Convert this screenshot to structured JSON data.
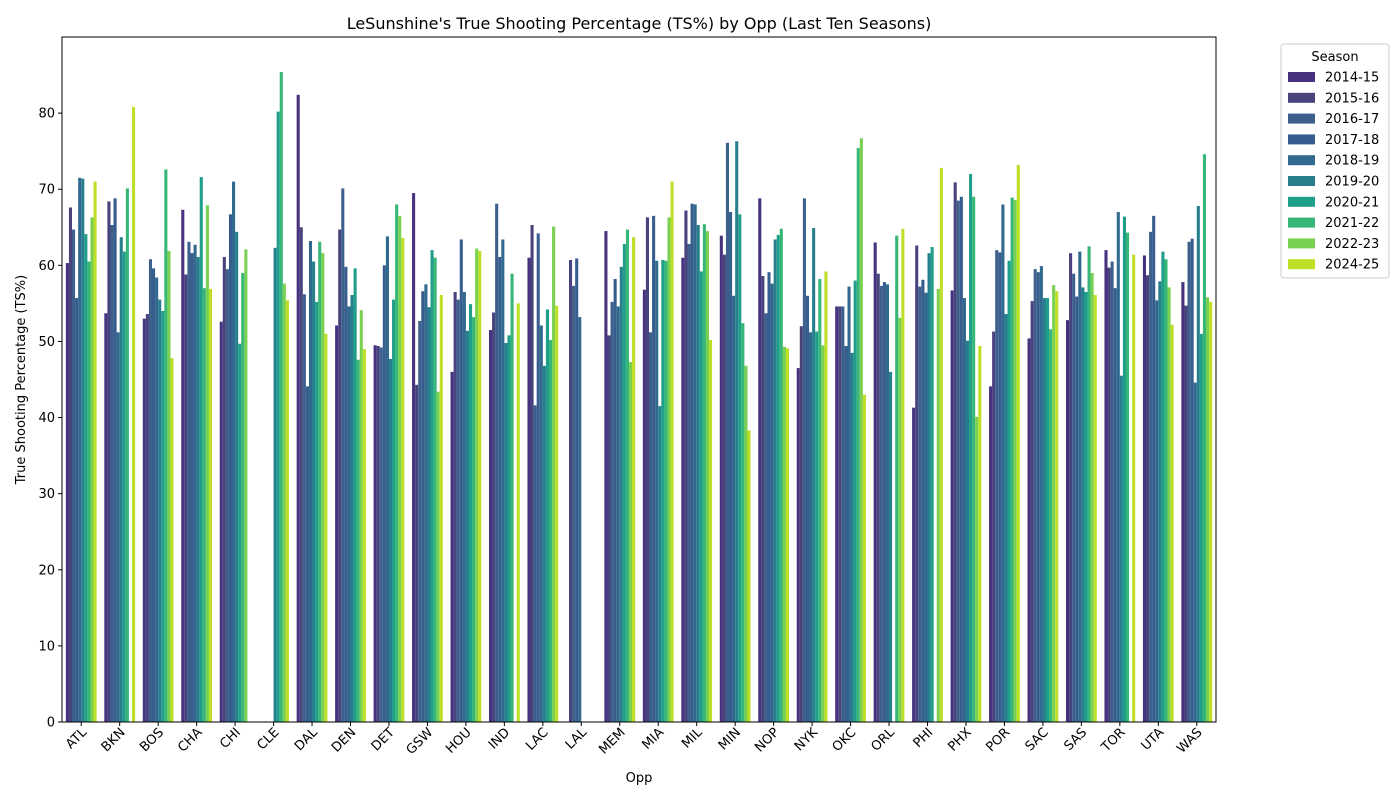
{
  "chart_data": {
    "type": "bar",
    "title": "LeSunshine's True Shooting Percentage (TS%) by Opp (Last Ten Seasons)",
    "xlabel": "Opp",
    "ylabel": "True Shooting Percentage (TS%)",
    "ylim": [
      0,
      90
    ],
    "yticks": [
      0,
      10,
      20,
      30,
      40,
      50,
      60,
      70,
      80
    ],
    "grid": false,
    "legend_title": "Season",
    "legend_position": "outside-top-right",
    "categories": [
      "ATL",
      "BKN",
      "BOS",
      "CHA",
      "CHI",
      "CLE",
      "DAL",
      "DEN",
      "DET",
      "GSW",
      "HOU",
      "IND",
      "LAC",
      "LAL",
      "MEM",
      "MIA",
      "MIL",
      "MIN",
      "NOP",
      "NYK",
      "OKC",
      "ORL",
      "PHI",
      "PHX",
      "POR",
      "SAC",
      "SAS",
      "TOR",
      "UTA",
      "WAS"
    ],
    "series": [
      {
        "name": "2014-15",
        "color": "#46327e",
        "values": [
          60.3,
          53.7,
          53.0,
          67.3,
          52.6,
          null,
          82.4,
          52.1,
          49.5,
          69.5,
          46.0,
          51.5,
          61.0,
          null,
          64.5,
          56.8,
          61.0,
          63.9,
          68.8,
          46.5,
          54.6,
          63.0,
          41.3,
          56.7,
          44.1,
          50.4,
          52.8,
          62.0,
          61.3,
          57.8
        ]
      },
      {
        "name": "2015-16",
        "color": "#48427d",
        "values": [
          67.6,
          68.4,
          53.6,
          58.8,
          61.1,
          null,
          65.0,
          64.7,
          49.4,
          44.3,
          56.5,
          53.8,
          65.3,
          60.7,
          50.8,
          66.3,
          67.2,
          61.4,
          58.6,
          52.0,
          54.6,
          58.9,
          62.6,
          70.9,
          51.3,
          55.3,
          61.6,
          59.7,
          58.7,
          54.7
        ]
      },
      {
        "name": "2016-17",
        "color": "#3d5f8c",
        "values": [
          64.7,
          65.3,
          60.8,
          63.1,
          59.5,
          null,
          56.2,
          70.1,
          49.2,
          52.7,
          55.5,
          68.1,
          41.6,
          57.3,
          55.2,
          51.2,
          62.8,
          76.1,
          53.7,
          68.8,
          54.6,
          57.3,
          57.2,
          68.5,
          62.0,
          59.5,
          58.9,
          60.5,
          64.4,
          63.1
        ]
      },
      {
        "name": "2017-18",
        "color": "#365d8d",
        "values": [
          55.7,
          68.8,
          59.6,
          61.6,
          66.7,
          null,
          44.1,
          59.8,
          60.0,
          56.6,
          63.4,
          61.1,
          64.2,
          60.9,
          58.2,
          66.5,
          68.1,
          67.0,
          59.1,
          56.0,
          49.4,
          57.8,
          58.1,
          69.0,
          61.7,
          59.1,
          55.9,
          57.0,
          66.5,
          63.5
        ]
      },
      {
        "name": "2018-19",
        "color": "#30688e",
        "values": [
          71.5,
          51.2,
          58.4,
          62.7,
          71.0,
          null,
          63.2,
          54.6,
          63.8,
          57.5,
          56.5,
          63.4,
          52.1,
          53.2,
          54.6,
          60.6,
          68.0,
          56.0,
          57.6,
          51.2,
          57.2,
          57.5,
          56.4,
          55.7,
          68.0,
          59.9,
          61.8,
          67.0,
          55.4,
          44.6
        ]
      },
      {
        "name": "2019-20",
        "color": "#277f8e",
        "values": [
          71.4,
          63.7,
          55.5,
          61.1,
          64.4,
          62.3,
          60.5,
          56.1,
          47.7,
          54.5,
          51.4,
          49.8,
          46.8,
          null,
          59.8,
          41.5,
          65.3,
          76.3,
          63.4,
          64.9,
          48.5,
          46.0,
          61.6,
          50.1,
          53.6,
          55.7,
          57.1,
          45.5,
          57.9,
          67.8
        ]
      },
      {
        "name": "2020-21",
        "color": "#1f9e89",
        "values": [
          64.1,
          61.8,
          54.0,
          71.6,
          49.7,
          80.2,
          55.2,
          59.6,
          55.5,
          62.0,
          54.9,
          50.8,
          54.2,
          null,
          62.8,
          60.7,
          59.2,
          66.7,
          64.0,
          51.3,
          58.0,
          null,
          62.4,
          72.0,
          60.6,
          55.7,
          56.5,
          66.4,
          61.8,
          51.0
        ]
      },
      {
        "name": "2021-22",
        "color": "#36b677",
        "values": [
          60.5,
          70.1,
          72.6,
          57.0,
          59.0,
          85.4,
          63.1,
          47.6,
          68.0,
          61.0,
          53.2,
          58.9,
          50.2,
          null,
          64.7,
          60.6,
          65.4,
          52.4,
          64.8,
          58.2,
          75.4,
          63.9,
          null,
          69.0,
          68.9,
          51.6,
          62.5,
          64.3,
          60.8,
          74.6
        ]
      },
      {
        "name": "2022-23",
        "color": "#7ad151",
        "values": [
          66.3,
          null,
          61.9,
          67.9,
          62.1,
          57.6,
          61.6,
          54.1,
          66.5,
          43.4,
          62.2,
          null,
          65.1,
          null,
          47.3,
          66.3,
          64.5,
          46.8,
          49.3,
          49.5,
          76.7,
          53.1,
          56.9,
          40.1,
          68.6,
          57.4,
          59.0,
          null,
          57.1,
          55.8
        ]
      },
      {
        "name": "2024-25",
        "color": "#bddf26",
        "values": [
          71.0,
          80.8,
          47.8,
          56.9,
          null,
          55.4,
          51.0,
          49.0,
          63.6,
          56.1,
          61.9,
          55.0,
          54.7,
          null,
          63.7,
          71.0,
          50.2,
          38.3,
          49.1,
          59.2,
          43.0,
          64.8,
          72.8,
          49.4,
          73.2,
          56.6,
          56.1,
          61.4,
          52.2,
          55.2
        ]
      }
    ]
  }
}
